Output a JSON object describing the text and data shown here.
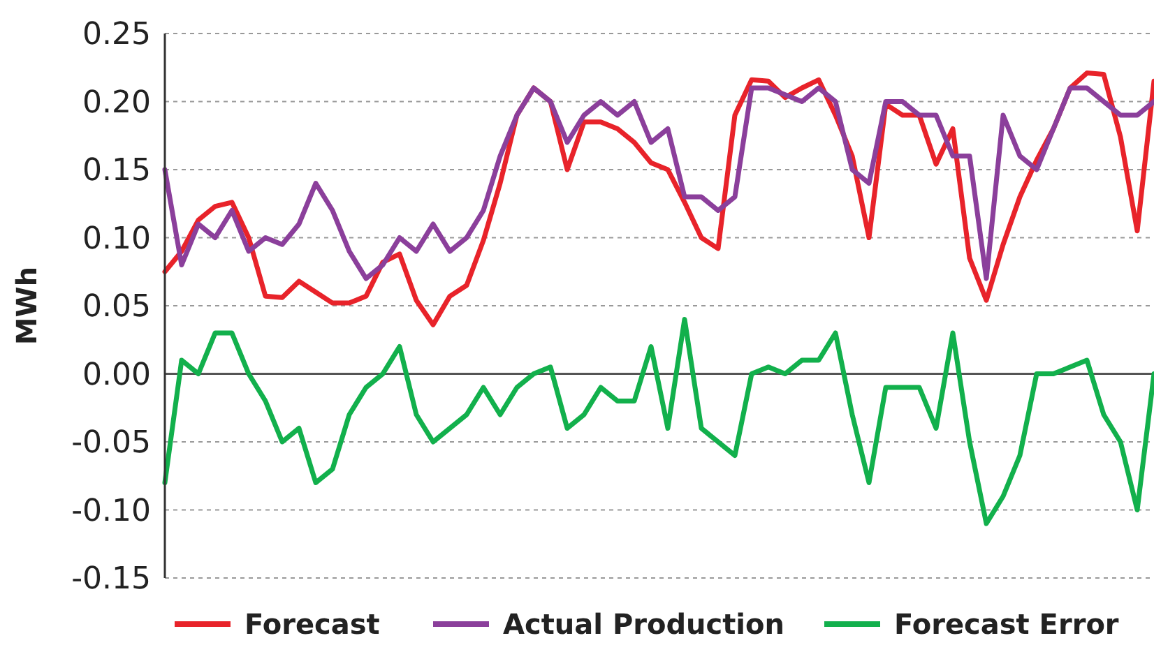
{
  "chart_data": {
    "type": "line",
    "ylabel": "MWh",
    "categories": [
      null,
      null,
      null,
      null,
      null,
      null,
      null,
      null,
      null,
      null,
      null,
      null,
      null,
      null,
      null,
      null,
      null,
      null,
      null,
      null,
      null,
      null,
      null,
      null,
      null,
      null,
      null,
      null,
      null,
      null,
      null,
      null,
      null,
      null,
      null,
      null,
      null,
      null,
      null,
      null,
      null,
      null,
      null,
      null,
      null,
      null,
      null,
      null,
      null,
      null,
      null,
      null,
      null,
      null,
      null,
      null,
      null,
      null,
      null,
      null
    ],
    "ylim": [
      -0.15,
      0.25
    ],
    "yticks": [
      {
        "value": -0.15,
        "label": "-0.15"
      },
      {
        "value": -0.1,
        "label": "-0.10"
      },
      {
        "value": -0.05,
        "label": "-0.05"
      },
      {
        "value": 0,
        "label": "0.00"
      },
      {
        "value": 0.05,
        "label": "0.05"
      },
      {
        "value": 0.1,
        "label": "0.10"
      },
      {
        "value": 0.15,
        "label": "0.15"
      },
      {
        "value": 0.2,
        "label": "0.20"
      },
      {
        "value": 0.25,
        "label": "0.25"
      }
    ],
    "grid": "y",
    "legend": "bottom",
    "marker": "none",
    "line_style": "solid",
    "ref_lines": [
      {
        "axis": "y",
        "value": 0,
        "color": "#555555",
        "line_style": "solid"
      }
    ],
    "series": [
      {
        "name": "Forecast",
        "color": "#e8232a",
        "values": [
          0.075,
          0.09,
          0.113,
          0.123,
          0.126,
          0.1,
          0.057,
          0.056,
          0.068,
          0.06,
          0.052,
          0.052,
          0.057,
          0.082,
          0.088,
          0.054,
          0.036,
          0.057,
          0.065,
          0.098,
          0.14,
          0.19,
          0.21,
          0.2,
          0.15,
          0.185,
          0.185,
          0.18,
          0.17,
          0.155,
          0.15,
          0.126,
          0.1,
          0.092,
          0.19,
          0.216,
          0.215,
          0.203,
          0.21,
          0.216,
          0.19,
          0.16,
          0.1,
          0.198,
          0.19,
          0.19,
          0.154,
          0.18,
          0.085,
          0.054,
          0.095,
          0.13,
          0.157,
          0.18,
          0.21,
          0.221,
          0.22,
          0.174,
          0.105,
          0.215
        ]
      },
      {
        "name": "Actual Production",
        "color": "#8b3f9b",
        "values": [
          0.15,
          0.08,
          0.11,
          0.1,
          0.12,
          0.09,
          0.1,
          0.095,
          0.11,
          0.14,
          0.12,
          0.09,
          0.07,
          0.08,
          0.1,
          0.09,
          0.11,
          0.09,
          0.1,
          0.12,
          0.16,
          0.19,
          0.21,
          0.2,
          0.17,
          0.19,
          0.2,
          0.19,
          0.2,
          0.17,
          0.18,
          0.13,
          0.13,
          0.12,
          0.13,
          0.21,
          0.21,
          0.205,
          0.2,
          0.21,
          0.2,
          0.15,
          0.14,
          0.2,
          0.2,
          0.19,
          0.19,
          0.16,
          0.16,
          0.07,
          0.19,
          0.16,
          0.15,
          0.18,
          0.21,
          0.21,
          0.2,
          0.19,
          0.19,
          0.2
        ]
      },
      {
        "name": "Forecast Error",
        "color": "#12b04c",
        "values": [
          -0.08,
          0.01,
          0,
          0.03,
          0.03,
          0,
          -0.02,
          -0.05,
          -0.04,
          -0.08,
          -0.07,
          -0.03,
          -0.01,
          0,
          0.02,
          -0.03,
          -0.05,
          -0.04,
          -0.03,
          -0.01,
          -0.03,
          -0.01,
          0,
          0.005,
          -0.04,
          -0.03,
          -0.01,
          -0.02,
          -0.02,
          0.02,
          -0.04,
          0.04,
          -0.04,
          -0.05,
          -0.06,
          0,
          0.005,
          0,
          0.01,
          0.01,
          0.03,
          -0.03,
          -0.08,
          -0.01,
          -0.01,
          -0.01,
          -0.04,
          0.03,
          -0.05,
          -0.11,
          -0.09,
          -0.06,
          0,
          0,
          0.005,
          0.01,
          -0.03,
          -0.05,
          -0.1,
          0
        ]
      }
    ]
  }
}
